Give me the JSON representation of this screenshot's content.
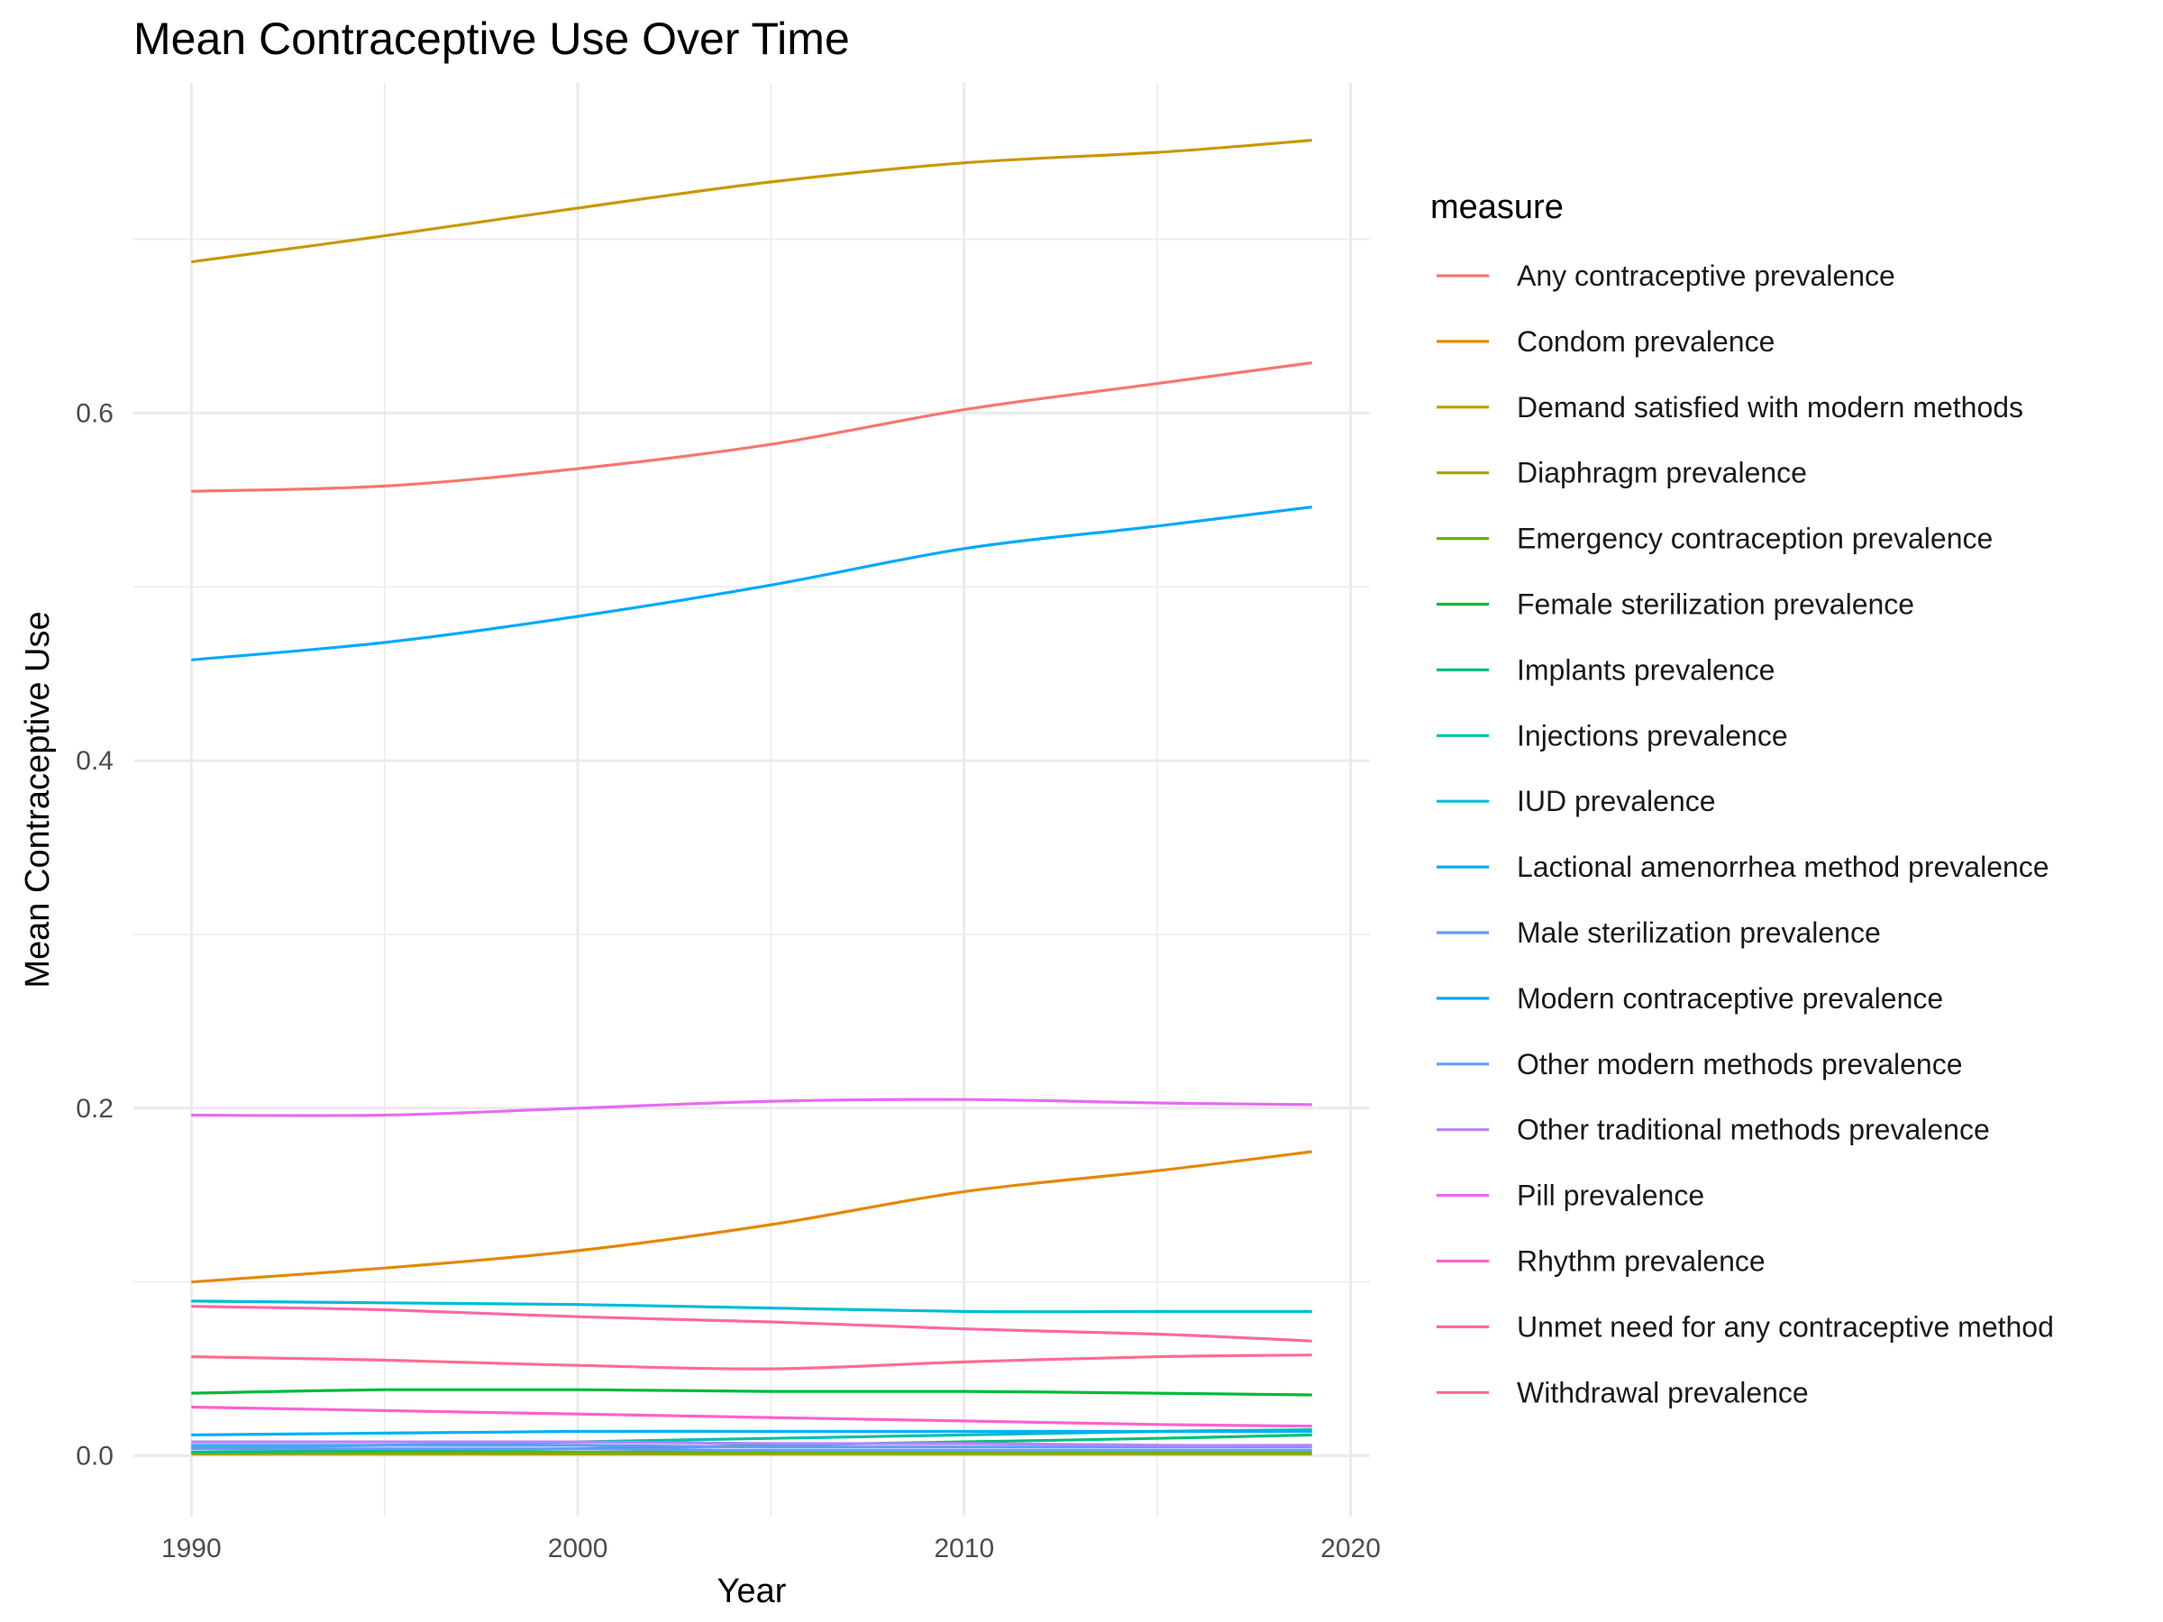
{
  "chart_data": {
    "type": "line",
    "title": "Mean Contraceptive Use Over Time",
    "xlabel": "Year",
    "ylabel": "Mean Contraceptive Use",
    "xlim": [
      1988.5,
      2020.5
    ],
    "ylim": [
      -0.035,
      0.79
    ],
    "x_ticks": [
      1990,
      2000,
      2010,
      2020
    ],
    "y_ticks": [
      0.0,
      0.2,
      0.4,
      0.6
    ],
    "y_tick_labels": [
      "0.0",
      "0.2",
      "0.4",
      "0.6"
    ],
    "grid": true,
    "legend_title": "measure",
    "legend_position": "right",
    "x": [
      1990,
      1995,
      2000,
      2005,
      2010,
      2015,
      2019
    ],
    "series": [
      {
        "name": "Any contraceptive prevalence",
        "color": "#F8766D",
        "values": [
          0.555,
          0.558,
          0.568,
          0.582,
          0.602,
          0.617,
          0.629
        ]
      },
      {
        "name": "Condom prevalence",
        "color": "#E58700",
        "values": [
          0.1,
          0.108,
          0.118,
          0.133,
          0.152,
          0.164,
          0.175
        ]
      },
      {
        "name": "Demand satisfied with modern methods",
        "color": "#C99800",
        "values": [
          0.687,
          0.702,
          0.718,
          0.733,
          0.744,
          0.75,
          0.757
        ]
      },
      {
        "name": "Diaphragm prevalence",
        "color": "#A3A500",
        "values": [
          0.001,
          0.001,
          0.001,
          0.001,
          0.001,
          0.001,
          0.001
        ]
      },
      {
        "name": "Emergency contraception prevalence",
        "color": "#6BB100",
        "values": [
          0.002,
          0.002,
          0.002,
          0.002,
          0.002,
          0.002,
          0.002
        ]
      },
      {
        "name": "Female sterilization prevalence",
        "color": "#00BA38",
        "values": [
          0.036,
          0.038,
          0.038,
          0.037,
          0.037,
          0.036,
          0.035
        ]
      },
      {
        "name": "Implants prevalence",
        "color": "#00BF7D",
        "values": [
          0.002,
          0.003,
          0.004,
          0.006,
          0.008,
          0.01,
          0.012
        ]
      },
      {
        "name": "Injections prevalence",
        "color": "#00C0AF",
        "values": [
          0.005,
          0.006,
          0.008,
          0.01,
          0.012,
          0.014,
          0.015
        ]
      },
      {
        "name": "IUD prevalence",
        "color": "#00BCD8",
        "values": [
          0.089,
          0.088,
          0.087,
          0.085,
          0.083,
          0.083,
          0.083
        ]
      },
      {
        "name": "Lactional amenorrhea method prevalence",
        "color": "#00B0F6",
        "values": [
          0.012,
          0.013,
          0.014,
          0.014,
          0.014,
          0.014,
          0.014
        ]
      },
      {
        "name": "Male sterilization prevalence",
        "color": "#619CFF",
        "values": [
          0.004,
          0.004,
          0.004,
          0.003,
          0.003,
          0.003,
          0.003
        ]
      },
      {
        "name": "Modern contraceptive prevalence",
        "color": "#00A9FF",
        "values": [
          0.458,
          0.468,
          0.483,
          0.501,
          0.522,
          0.535,
          0.546
        ]
      },
      {
        "name": "Other modern methods prevalence",
        "color": "#619CFF",
        "values": [
          0.006,
          0.006,
          0.006,
          0.005,
          0.005,
          0.005,
          0.005
        ]
      },
      {
        "name": "Other traditional methods prevalence",
        "color": "#B983FF",
        "values": [
          0.008,
          0.008,
          0.008,
          0.007,
          0.007,
          0.006,
          0.006
        ]
      },
      {
        "name": "Pill prevalence",
        "color": "#E76BF3",
        "values": [
          0.196,
          0.196,
          0.2,
          0.204,
          0.205,
          0.203,
          0.202
        ]
      },
      {
        "name": "Rhythm prevalence",
        "color": "#FD61D1",
        "values": [
          0.028,
          0.026,
          0.024,
          0.022,
          0.02,
          0.018,
          0.017
        ]
      },
      {
        "name": "Unmet need for any contraceptive method",
        "color": "#FF67A4",
        "values": [
          0.086,
          0.084,
          0.08,
          0.077,
          0.073,
          0.07,
          0.066
        ]
      },
      {
        "name": "Withdrawal prevalence",
        "color": "#FF6C91",
        "values": [
          0.057,
          0.055,
          0.052,
          0.05,
          0.054,
          0.057,
          0.058
        ]
      }
    ]
  }
}
